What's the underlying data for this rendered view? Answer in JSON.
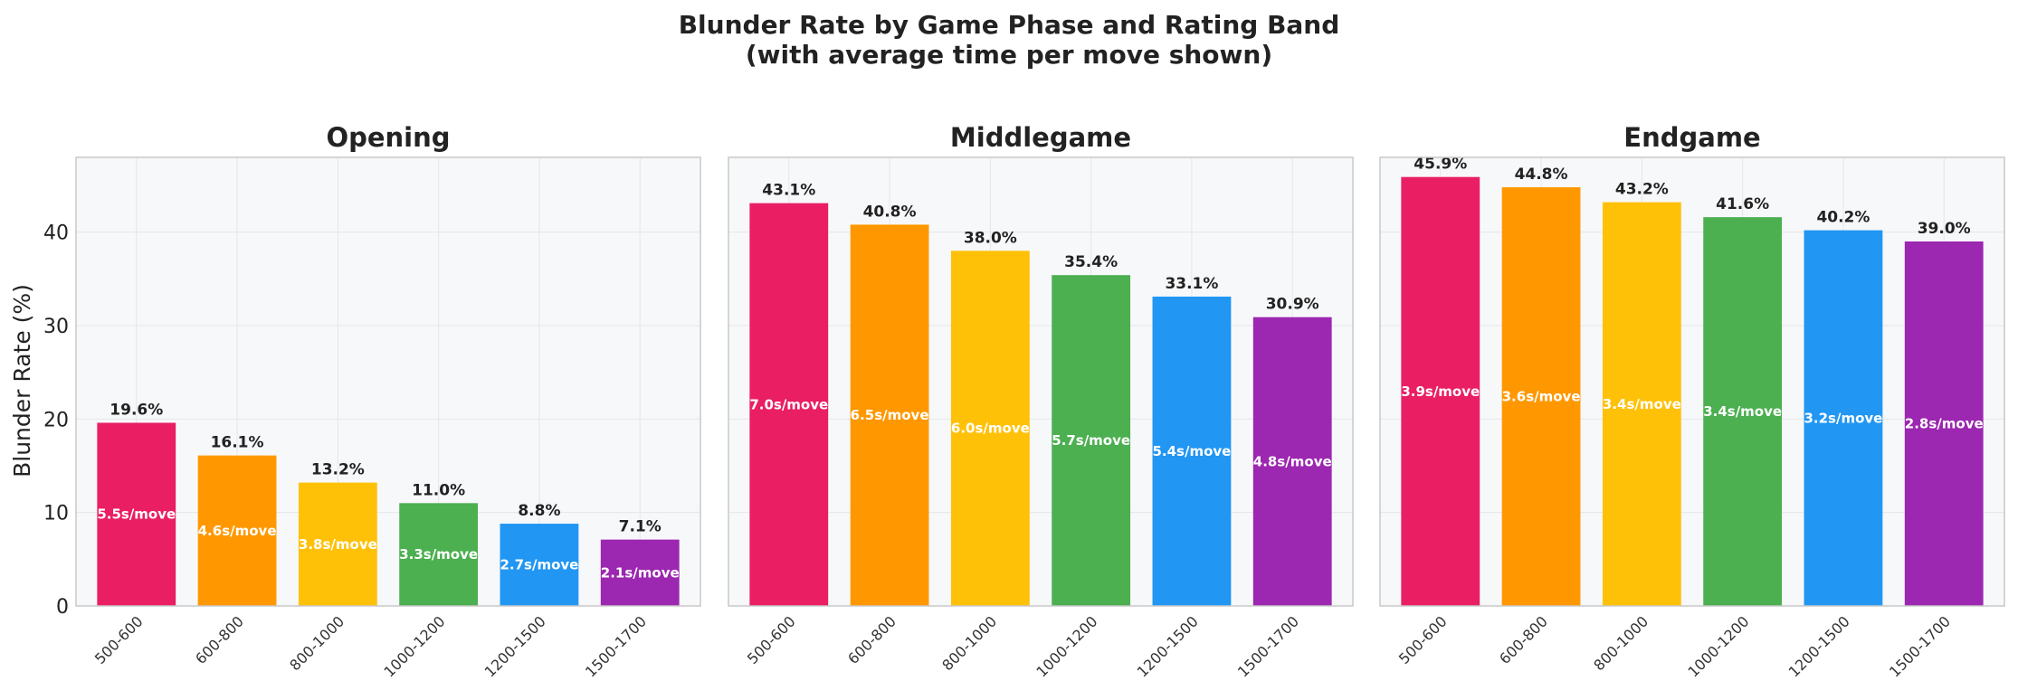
{
  "chart_data": {
    "type": "bar",
    "title": "Blunder Rate by Game Phase and Rating Band",
    "subtitle": "(with average time per move shown)",
    "ylabel": "Blunder Rate (%)",
    "ylim": [
      0,
      48
    ],
    "yticks": [
      0,
      10,
      20,
      30,
      40
    ],
    "grid": true,
    "categories": [
      "500-600",
      "600-800",
      "800-1000",
      "1000-1200",
      "1200-1500",
      "1500-1700"
    ],
    "colors": [
      "#e91e63",
      "#ff9800",
      "#ffc107",
      "#4caf50",
      "#2196f3",
      "#9c27b0"
    ],
    "panels": [
      {
        "title": "Opening",
        "values": [
          19.6,
          16.1,
          13.2,
          11.0,
          8.8,
          7.1
        ],
        "value_labels": [
          "19.6%",
          "16.1%",
          "13.2%",
          "11.0%",
          "8.8%",
          "7.1%"
        ],
        "time_labels": [
          "5.5s/move",
          "4.6s/move",
          "3.8s/move",
          "3.3s/move",
          "2.7s/move",
          "2.1s/move"
        ]
      },
      {
        "title": "Middlegame",
        "values": [
          43.1,
          40.8,
          38.0,
          35.4,
          33.1,
          30.9
        ],
        "value_labels": [
          "43.1%",
          "40.8%",
          "38.0%",
          "35.4%",
          "33.1%",
          "30.9%"
        ],
        "time_labels": [
          "7.0s/move",
          "6.5s/move",
          "6.0s/move",
          "5.7s/move",
          "5.4s/move",
          "4.8s/move"
        ]
      },
      {
        "title": "Endgame",
        "values": [
          45.9,
          44.8,
          43.2,
          41.6,
          40.2,
          39.0
        ],
        "value_labels": [
          "45.9%",
          "44.8%",
          "43.2%",
          "41.6%",
          "40.2%",
          "39.0%"
        ],
        "time_labels": [
          "3.9s/move",
          "3.6s/move",
          "3.4s/move",
          "3.4s/move",
          "3.2s/move",
          "2.8s/move"
        ]
      }
    ]
  }
}
